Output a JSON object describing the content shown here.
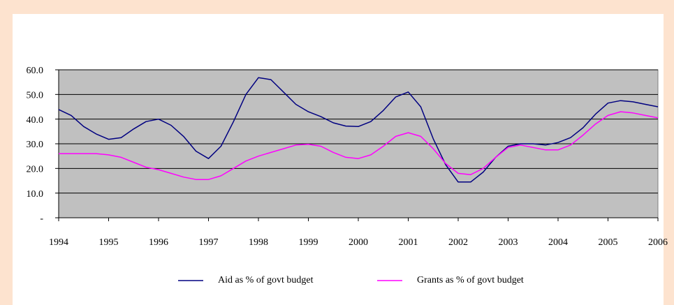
{
  "chart_data": {
    "type": "line",
    "x": [
      1994,
      1994.25,
      1994.5,
      1994.75,
      1995,
      1995.25,
      1995.5,
      1995.75,
      1996,
      1996.25,
      1996.5,
      1996.75,
      1997,
      1997.25,
      1997.5,
      1997.75,
      1998,
      1998.25,
      1998.5,
      1998.75,
      1999,
      1999.25,
      1999.5,
      1999.75,
      2000,
      2000.25,
      2000.5,
      2000.75,
      2001,
      2001.25,
      2001.5,
      2001.75,
      2002,
      2002.25,
      2002.5,
      2002.75,
      2003,
      2003.25,
      2003.5,
      2003.75,
      2004,
      2004.25,
      2004.5,
      2004.75,
      2005,
      2005.25,
      2005.5,
      2005.75,
      2006
    ],
    "series": [
      {
        "name": "Aid as % of govt budget",
        "color": "#000080",
        "values": [
          43.9,
          41.5,
          37,
          34,
          31.8,
          32.5,
          36,
          39,
          40,
          37.5,
          33,
          27,
          24,
          29,
          39,
          50,
          56.8,
          56,
          51,
          46,
          43,
          41,
          38.5,
          37.2,
          37,
          39,
          43.5,
          49,
          51,
          45,
          32,
          21.5,
          14.5,
          14.5,
          18.5,
          24.5,
          29,
          30,
          30,
          29.5,
          30.5,
          32.5,
          36.5,
          42,
          46.5,
          47.5,
          47,
          46,
          45
        ]
      },
      {
        "name": "Grants as % of govt budget",
        "color": "#ff00ff",
        "values": [
          26,
          26,
          26,
          26,
          25.5,
          24.5,
          22.5,
          20.5,
          19.5,
          18,
          16.5,
          15.5,
          15.5,
          17,
          20,
          23,
          25,
          26.5,
          28,
          29.5,
          29.8,
          29,
          26.5,
          24.5,
          24,
          25.5,
          29,
          33,
          34.5,
          33,
          28,
          22,
          18,
          17.5,
          20,
          24.5,
          28.5,
          29.5,
          28.5,
          27.5,
          27.5,
          29.5,
          33.5,
          38,
          41.5,
          43,
          42.5,
          41.5,
          40.5
        ]
      }
    ],
    "xlim": [
      1994,
      2006
    ],
    "xticks": [
      1994,
      1995,
      1996,
      1997,
      1998,
      1999,
      2000,
      2001,
      2002,
      2003,
      2004,
      2005,
      2006
    ],
    "ylim": [
      0,
      60
    ],
    "yticks": [
      {
        "value": 0,
        "label": "-"
      },
      {
        "value": 10,
        "label": "10.0"
      },
      {
        "value": 20,
        "label": "20.0"
      },
      {
        "value": 30,
        "label": "30.0"
      },
      {
        "value": 40,
        "label": "40.0"
      },
      {
        "value": 50,
        "label": "50.0"
      },
      {
        "value": 60,
        "label": "60.0"
      }
    ],
    "grid": true,
    "legend": "bottom",
    "plot_background": "#c0c0c0"
  }
}
